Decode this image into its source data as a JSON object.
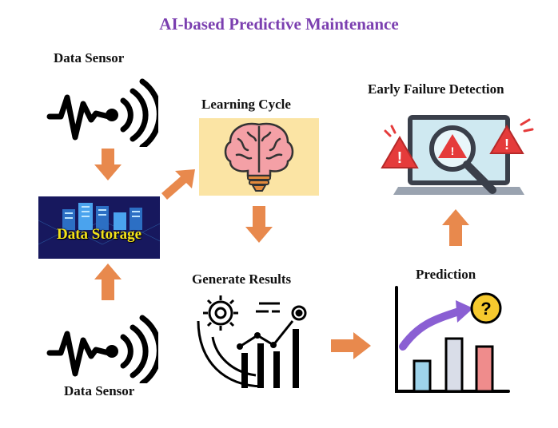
{
  "title": "AI-based Predictive Maintenance",
  "nodes": {
    "sensor_top": "Data Sensor",
    "sensor_bottom": "Data Sensor",
    "storage": "Data Storage",
    "learning": "Learning Cycle",
    "results": "Generate Results",
    "prediction": "Prediction",
    "detection": "Early Failure Detection"
  },
  "icons": {
    "sensor": "signal-wave-icon",
    "storage": "server-rack-icon",
    "learning": "brain-lightbulb-icon",
    "results": "gear-analytics-icon",
    "prediction": "bar-chart-question-icon",
    "detection": "laptop-alert-magnifier-icon"
  },
  "colors": {
    "title": "#7b3fb0",
    "arrow": "#e8894d",
    "learning_bg": "#fbe4a4",
    "storage_bg": "#17185e",
    "storage_text": "#f3e21a"
  }
}
